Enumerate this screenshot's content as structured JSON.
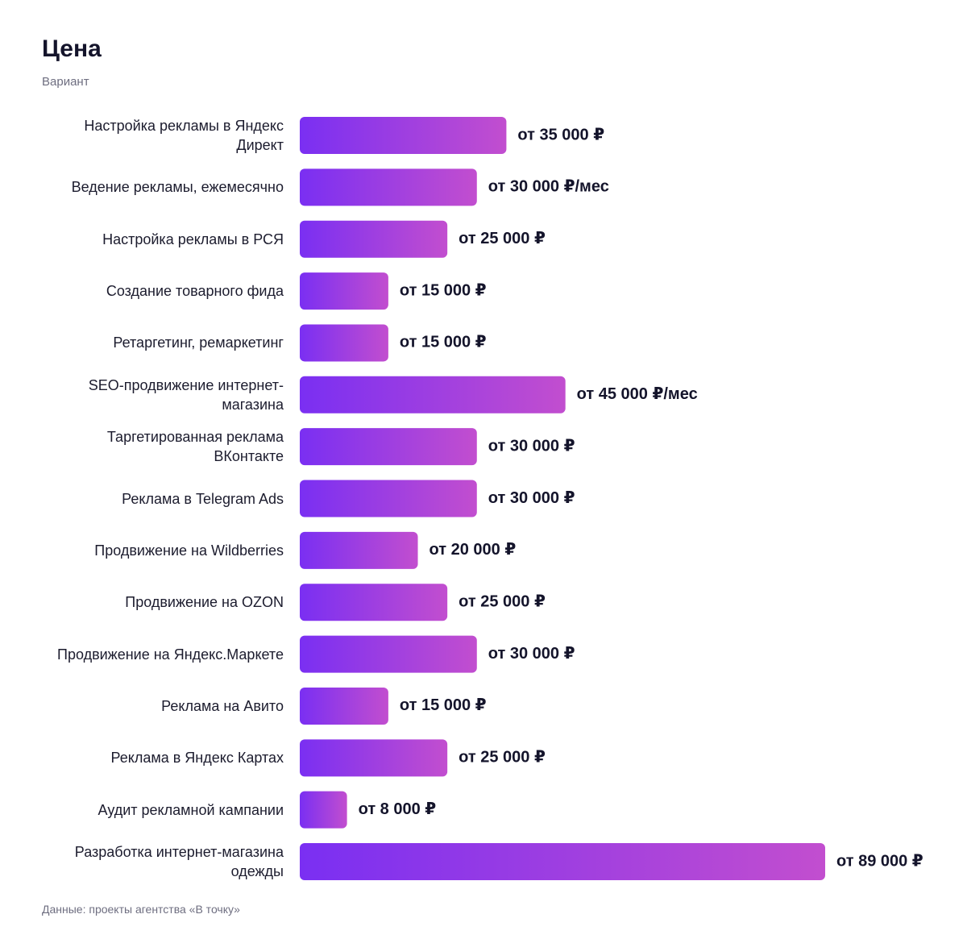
{
  "chart_data": {
    "type": "bar",
    "orientation": "horizontal",
    "title": "Цена",
    "subtitle": "Вариант",
    "source": "Данные: проекты агентства «В точку»",
    "categories": [
      "Настройка рекламы в Яндекс Директ",
      "Ведение рекламы, ежемесячно",
      "Настройка рекламы в РСЯ",
      "Создание товарного фида",
      "Ретаргетинг, ремаркетинг",
      "SEO-продвижение интернет-магазина",
      "Таргетированная реклама ВКонтакте",
      "Реклама в Telegram Ads",
      "Продвижение на Wildberries",
      "Продвижение на OZON",
      "Продвижение на Яндекс.Маркете",
      "Реклама на Авито",
      "Реклама в Яндекс Картах",
      "Аудит рекламной кампании",
      "Разработка интернет-магазина одежды"
    ],
    "values": [
      35000,
      30000,
      25000,
      15000,
      15000,
      45000,
      30000,
      30000,
      20000,
      25000,
      30000,
      15000,
      25000,
      8000,
      89000
    ],
    "value_labels": [
      "от 35 000 ₽",
      "от 30 000 ₽/мес",
      "от 25 000 ₽",
      "от 15 000 ₽",
      "от 15 000 ₽",
      "от 45 000 ₽/мес",
      "от 30 000 ₽",
      "от 30 000 ₽",
      "от 20 000 ₽",
      "от 25 000 ₽",
      "от 30 000 ₽",
      "от 15 000 ₽",
      "от 25 000 ₽",
      "от 8 000 ₽",
      "от 89 000 ₽"
    ],
    "color": [
      "#7a2ff2",
      "#c24ecf"
    ]
  }
}
